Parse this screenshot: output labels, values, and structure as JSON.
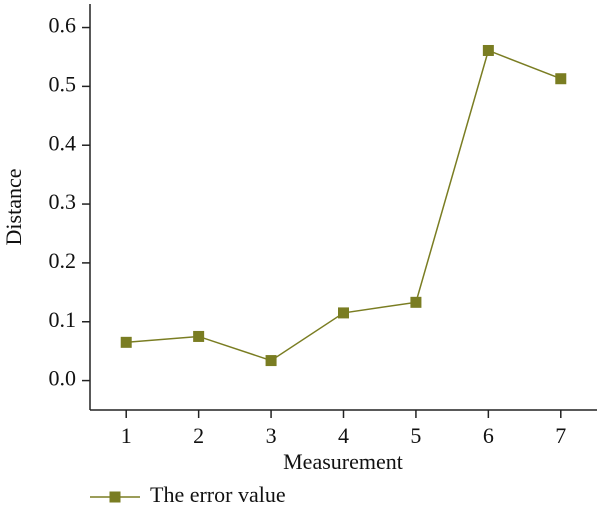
{
  "chart_data": {
    "type": "line",
    "x_label": "Measurement",
    "y_label": "Distance",
    "x": [
      1,
      2,
      3,
      4,
      5,
      6,
      7
    ],
    "series": [
      {
        "name": "The error value",
        "color": "#7a7d22",
        "values": [
          0.065,
          0.075,
          0.034,
          0.115,
          0.133,
          0.561,
          0.513
        ]
      }
    ],
    "xlim": [
      0.5,
      7.5
    ],
    "xticks": [
      1,
      2,
      3,
      4,
      5,
      6,
      7
    ],
    "ylim": [
      -0.05,
      0.64
    ],
    "yticks": [
      {
        "value": 0,
        "label": "0.0"
      },
      0.1,
      0.2,
      0.3,
      0.4,
      0.5,
      0.6
    ],
    "grid": false,
    "legend": "bottom"
  }
}
